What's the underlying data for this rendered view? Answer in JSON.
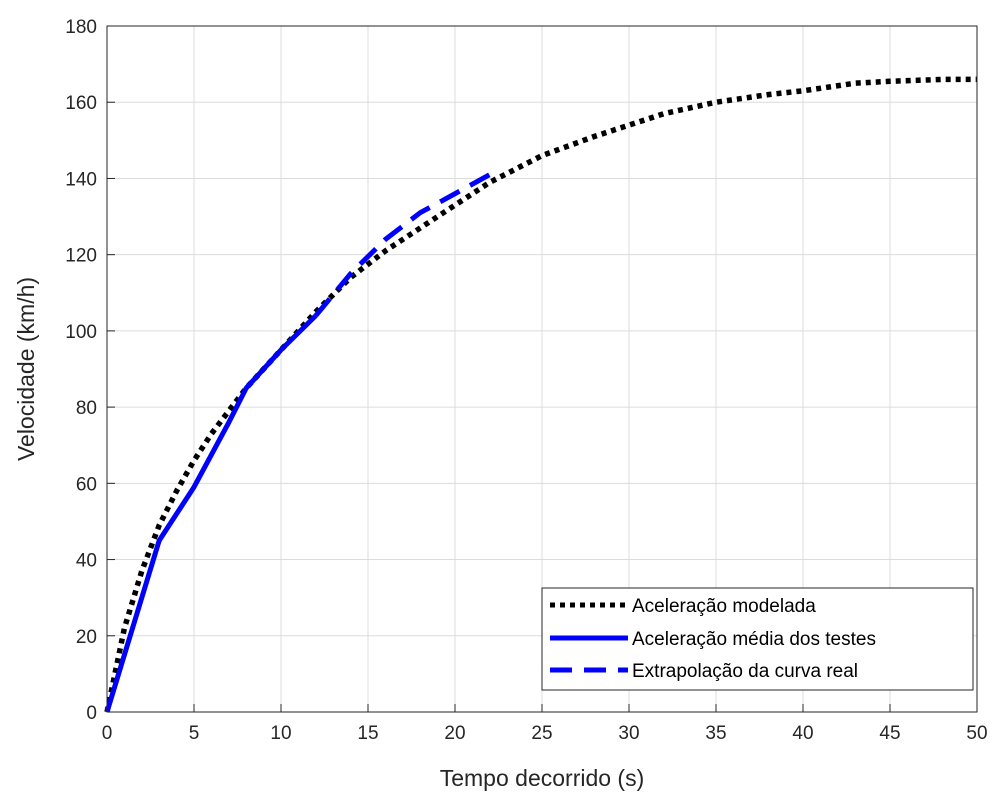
{
  "chart_data": {
    "type": "line",
    "xlabel": "Tempo decorrido (s)",
    "ylabel": "Velocidade (km/h)",
    "xlim": [
      0,
      50
    ],
    "ylim": [
      0,
      180
    ],
    "xticks": [
      0,
      5,
      10,
      15,
      20,
      25,
      30,
      35,
      40,
      45,
      50
    ],
    "yticks": [
      0,
      20,
      40,
      60,
      80,
      100,
      120,
      140,
      160,
      180
    ],
    "grid": true,
    "legend_position": "bottom-right",
    "series": [
      {
        "name": "Aceleração modelada",
        "color": "#000000",
        "style": "dotted",
        "x": [
          0,
          1,
          2,
          3,
          4,
          5,
          6,
          7,
          8,
          9,
          10,
          12,
          14,
          16,
          18,
          20,
          22,
          25,
          28,
          30,
          32,
          35,
          38,
          40,
          43,
          45,
          48,
          50
        ],
        "y": [
          0,
          22,
          37,
          49,
          58,
          66,
          73,
          79,
          85,
          90,
          95,
          105,
          114,
          121,
          127,
          133,
          139,
          146,
          151,
          154,
          157,
          160,
          162,
          163,
          165,
          165.5,
          166,
          166
        ]
      },
      {
        "name": "Aceleração média dos testes",
        "color": "#0000ff",
        "style": "solid",
        "x": [
          0,
          3,
          5,
          7,
          8,
          10,
          12
        ],
        "y": [
          0,
          45,
          59,
          76,
          85,
          95,
          104
        ]
      },
      {
        "name": "Extrapolação da curva real",
        "color": "#0000ff",
        "style": "dashed",
        "x": [
          12,
          14,
          16,
          18,
          20,
          22
        ],
        "y": [
          104,
          115,
          124,
          131,
          136,
          141
        ]
      }
    ]
  }
}
